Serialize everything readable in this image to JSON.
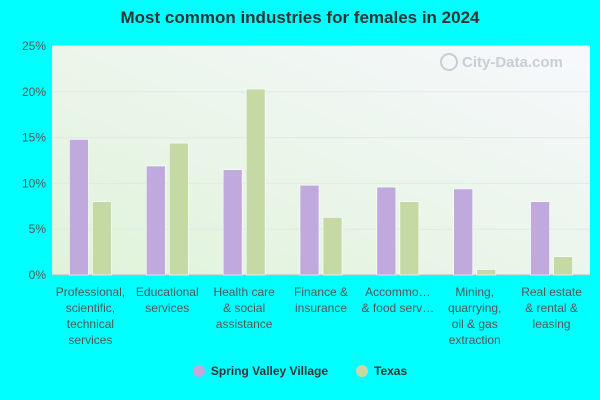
{
  "chart_data": {
    "type": "bar",
    "title": "Most common industries for females in 2024",
    "categories": [
      [
        "Professional,",
        "scientific,",
        "technical",
        "services"
      ],
      [
        "Educational",
        "services"
      ],
      [
        "Health care",
        "& social",
        "assistance"
      ],
      [
        "Finance &",
        "insurance"
      ],
      [
        "Accommo…",
        "& food serv…"
      ],
      [
        "Mining,",
        "quarrying,",
        "oil & gas",
        "extraction"
      ],
      [
        "Real estate",
        "& rental &",
        "leasing"
      ]
    ],
    "series": [
      {
        "name": "Spring Valley Village",
        "color": "#c0a9dc",
        "values": [
          14.8,
          11.9,
          11.5,
          9.8,
          9.6,
          9.4,
          8.0
        ]
      },
      {
        "name": "Texas",
        "color": "#c5d9a5",
        "values": [
          8.0,
          14.4,
          20.3,
          6.3,
          8.0,
          0.6,
          2.0
        ]
      }
    ],
    "ylim": [
      0,
      25
    ],
    "yticks": [
      0,
      5,
      10,
      15,
      20,
      25
    ],
    "ytick_labels": [
      "0%",
      "5%",
      "10%",
      "15%",
      "20%",
      "25%"
    ],
    "xlabel": "",
    "ylabel": "",
    "legend": "bottom-center",
    "grid": true
  },
  "watermark": "City-Data.com"
}
